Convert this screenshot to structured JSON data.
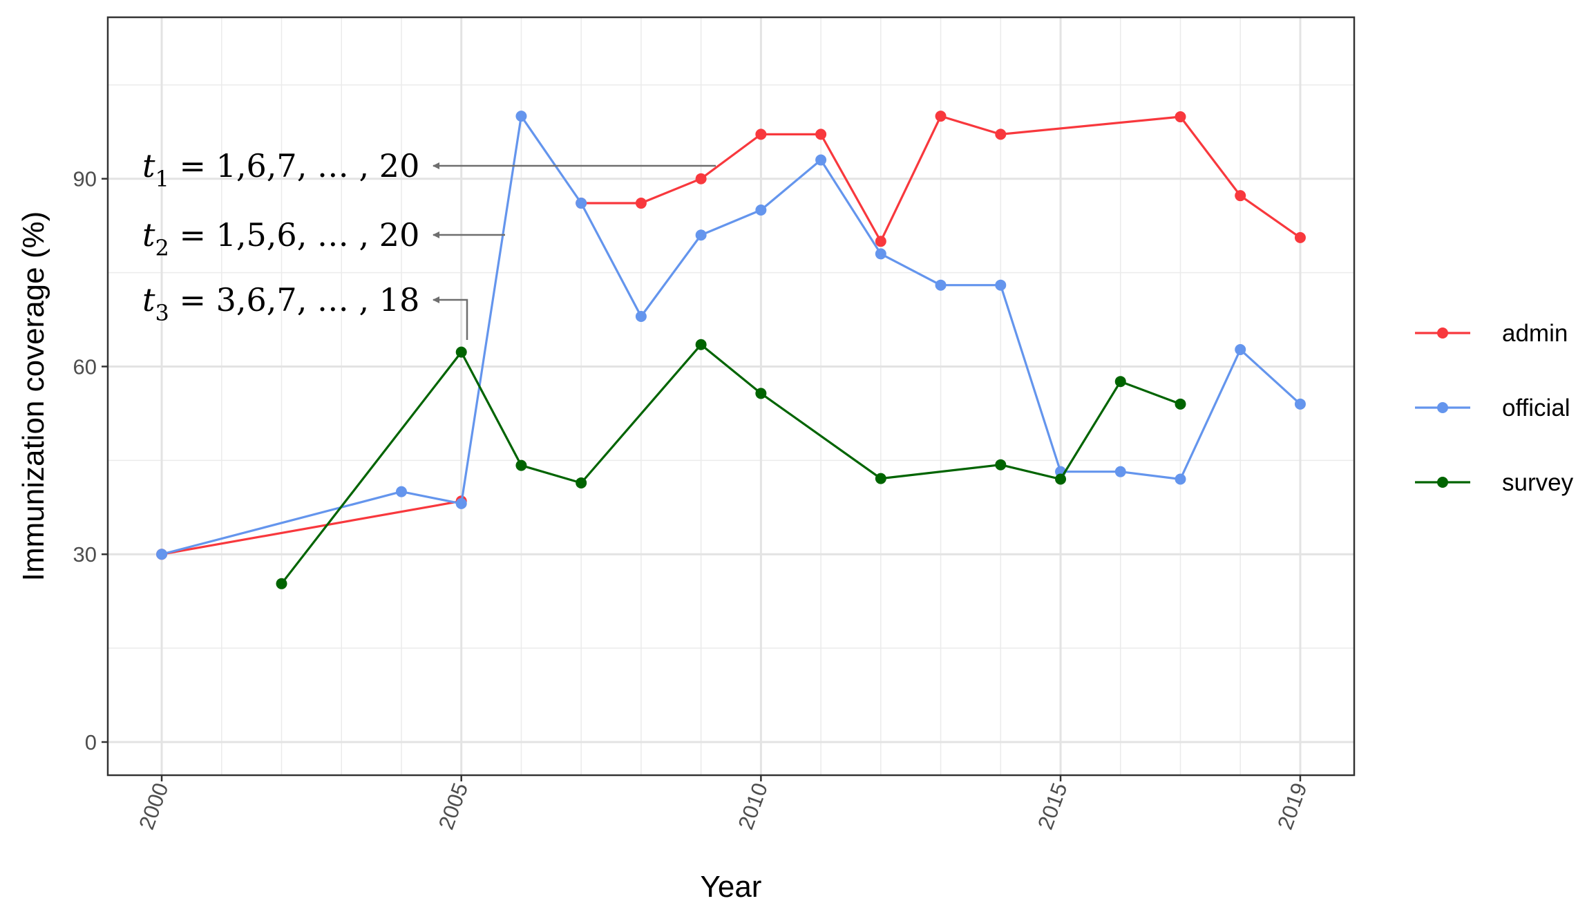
{
  "chart_data": {
    "type": "line",
    "xlabel": "Year",
    "ylabel": "Immunization coverage (%)",
    "xlim": [
      1999.1,
      2019.9
    ],
    "ylim": [
      -5.3,
      115.8
    ],
    "x_ticks": [
      2000,
      2005,
      2010,
      2015,
      2019
    ],
    "x_tick_labels": [
      "2000",
      "2005",
      "2010",
      "2015",
      "2019"
    ],
    "y_ticks": [
      0,
      30,
      60,
      90
    ],
    "y_tick_labels": [
      "0",
      "30",
      "60",
      "90"
    ],
    "grid": true,
    "legend_position": "right",
    "series": [
      {
        "name": "admin",
        "color": "#f8383d",
        "segments": [
          [
            [
              2000,
              30.0
            ],
            [
              2005,
              38.5
            ]
          ],
          [
            [
              2007,
              86.1
            ],
            [
              2008,
              86.1
            ],
            [
              2009,
              90.0
            ],
            [
              2010,
              97.1
            ],
            [
              2011,
              97.1
            ],
            [
              2012,
              80.0
            ],
            [
              2013,
              100.0
            ],
            [
              2014,
              97.1
            ],
            [
              2017,
              99.9
            ],
            [
              2018,
              87.3
            ],
            [
              2019,
              80.6
            ]
          ]
        ]
      },
      {
        "name": "official",
        "color": "#6495ed",
        "segments": [
          [
            [
              2000,
              30.0
            ],
            [
              2004,
              40.0
            ],
            [
              2005,
              38.1
            ],
            [
              2006,
              100.0
            ],
            [
              2007,
              86.1
            ],
            [
              2008,
              68.0
            ],
            [
              2009,
              81.0
            ],
            [
              2010,
              85.0
            ],
            [
              2011,
              93.0
            ],
            [
              2012,
              78.0
            ],
            [
              2013,
              73.0
            ],
            [
              2014,
              73.0
            ],
            [
              2015,
              43.2
            ],
            [
              2016,
              43.2
            ],
            [
              2017,
              42.0
            ],
            [
              2018,
              62.7
            ],
            [
              2019,
              54.0
            ]
          ]
        ]
      },
      {
        "name": "survey",
        "color": "#006400",
        "segments": [
          [
            [
              2002,
              25.3
            ],
            [
              2005,
              62.3
            ],
            [
              2006,
              44.2
            ],
            [
              2007,
              41.4
            ],
            [
              2009,
              63.5
            ],
            [
              2010,
              55.7
            ],
            [
              2012,
              42.1
            ],
            [
              2014,
              44.3
            ],
            [
              2015,
              42.0
            ],
            [
              2016,
              57.6
            ],
            [
              2017,
              54.0
            ]
          ]
        ]
      }
    ],
    "annotations": [
      {
        "var": "t",
        "sub": "1",
        "rest": " = 1,6,7, … , 20",
        "arrow_to": "admin"
      },
      {
        "var": "t",
        "sub": "2",
        "rest": " = 1,5,6, … , 20",
        "arrow_to": "official"
      },
      {
        "var": "t",
        "sub": "3",
        "rest": " = 3,6,7, … , 18",
        "arrow_to": "survey"
      }
    ]
  }
}
